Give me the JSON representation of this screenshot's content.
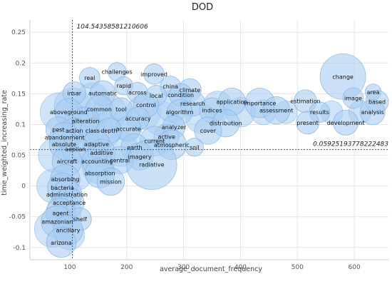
{
  "chart_data": {
    "type": "scatter",
    "title": "DOD",
    "xlabel": "average_document_frequency",
    "ylabel": "time_weighted_increasing_rate",
    "xlim": [
      30,
      660
    ],
    "ylim": [
      -0.12,
      0.27
    ],
    "xticks": [
      100,
      200,
      300,
      400,
      500,
      600
    ],
    "yticks": [
      -0.1,
      -0.05,
      0,
      0.05,
      0.1,
      0.15,
      0.2,
      0.25
    ],
    "grid": true,
    "bubble_color": "#a9cdf2",
    "bubble_stroke": "#7fb0e3",
    "reference_lines": {
      "vertical": {
        "value": 104.54358581210606,
        "label": "104.54358581210606"
      },
      "horizontal": {
        "value": 0.05925193778222483,
        "label": "0.05925193778222483"
      }
    },
    "points": [
      {
        "label": "challenges",
        "x": 183,
        "y": 0.186,
        "size": 0.8
      },
      {
        "label": "real",
        "x": 135,
        "y": 0.176,
        "size": 0.9
      },
      {
        "label": "improved",
        "x": 248,
        "y": 0.182,
        "size": 0.9
      },
      {
        "label": "rapid",
        "x": 195,
        "y": 0.163,
        "size": 0.8
      },
      {
        "label": "china",
        "x": 277,
        "y": 0.162,
        "size": 0.9
      },
      {
        "label": "climate",
        "x": 311,
        "y": 0.156,
        "size": 1.0
      },
      {
        "label": "change",
        "x": 580,
        "y": 0.178,
        "size": 2.0
      },
      {
        "label": "area",
        "x": 633,
        "y": 0.153,
        "size": 0.7
      },
      {
        "label": "insar",
        "x": 108,
        "y": 0.151,
        "size": 1.0
      },
      {
        "label": "automatic",
        "x": 158,
        "y": 0.151,
        "size": 1.1
      },
      {
        "label": "across",
        "x": 219,
        "y": 0.152,
        "size": 0.9
      },
      {
        "label": "local",
        "x": 252,
        "y": 0.147,
        "size": 0.9
      },
      {
        "label": "condition",
        "x": 295,
        "y": 0.148,
        "size": 1.0
      },
      {
        "label": "image",
        "x": 598,
        "y": 0.143,
        "size": 0.9
      },
      {
        "label": "based",
        "x": 640,
        "y": 0.137,
        "size": 1.0
      },
      {
        "label": "research",
        "x": 316,
        "y": 0.134,
        "size": 1.1
      },
      {
        "label": "application",
        "x": 385,
        "y": 0.137,
        "size": 1.2
      },
      {
        "label": "importance",
        "x": 434,
        "y": 0.135,
        "size": 1.3
      },
      {
        "label": "estimation",
        "x": 514,
        "y": 0.138,
        "size": 1.0
      },
      {
        "label": "control",
        "x": 234,
        "y": 0.132,
        "size": 1.1
      },
      {
        "label": "common",
        "x": 152,
        "y": 0.125,
        "size": 1.2
      },
      {
        "label": "tool",
        "x": 190,
        "y": 0.125,
        "size": 1.0
      },
      {
        "label": "algorithm",
        "x": 293,
        "y": 0.12,
        "size": 1.1
      },
      {
        "label": "indices",
        "x": 350,
        "y": 0.123,
        "size": 1.1
      },
      {
        "label": "assessment",
        "x": 463,
        "y": 0.123,
        "size": 1.2
      },
      {
        "label": "results",
        "x": 539,
        "y": 0.12,
        "size": 0.9
      },
      {
        "label": "analysis",
        "x": 632,
        "y": 0.12,
        "size": 1.1
      },
      {
        "label": "aboveground",
        "x": 98,
        "y": 0.12,
        "size": 1.2
      },
      {
        "label": "accuracy",
        "x": 220,
        "y": 0.11,
        "size": 1.0
      },
      {
        "label": "alteration",
        "x": 128,
        "y": 0.106,
        "size": 1.2
      },
      {
        "label": "distribution",
        "x": 374,
        "y": 0.102,
        "size": 1.2
      },
      {
        "label": "present",
        "x": 518,
        "y": 0.103,
        "size": 1.0
      },
      {
        "label": "development",
        "x": 585,
        "y": 0.103,
        "size": 1.1
      },
      {
        "label": "analyzer",
        "x": 283,
        "y": 0.096,
        "size": 1.0
      },
      {
        "label": "accurate",
        "x": 203,
        "y": 0.093,
        "size": 1.1
      },
      {
        "label": "pest",
        "x": 80,
        "y": 0.092,
        "size": 1.1
      },
      {
        "label": "action",
        "x": 108,
        "y": 0.09,
        "size": 1.1
      },
      {
        "label": "class",
        "x": 140,
        "y": 0.09,
        "size": 1.1
      },
      {
        "label": "depth",
        "x": 169,
        "y": 0.09,
        "size": 1.1
      },
      {
        "label": "cover",
        "x": 343,
        "y": 0.09,
        "size": 1.2
      },
      {
        "label": "abandonment",
        "x": 91,
        "y": 0.079,
        "size": 1.3
      },
      {
        "label": "active",
        "x": 270,
        "y": 0.08,
        "size": 1.1
      },
      {
        "label": "current",
        "x": 249,
        "y": 0.073,
        "size": 1.3
      },
      {
        "label": "absolute",
        "x": 90,
        "y": 0.068,
        "size": 1.3
      },
      {
        "label": "adaptive",
        "x": 147,
        "y": 0.068,
        "size": 1.2
      },
      {
        "label": "atmospheric",
        "x": 279,
        "y": 0.067,
        "size": 1.3
      },
      {
        "label": "earth",
        "x": 214,
        "y": 0.063,
        "size": 1.2
      },
      {
        "label": "soil",
        "x": 319,
        "y": 0.063,
        "size": 0.8
      },
      {
        "label": "aeolian",
        "x": 110,
        "y": 0.06,
        "size": 1.2
      },
      {
        "label": "additive",
        "x": 156,
        "y": 0.054,
        "size": 1.2
      },
      {
        "label": "imagery",
        "x": 223,
        "y": 0.048,
        "size": 1.2
      },
      {
        "label": "aircraft",
        "x": 95,
        "y": 0.04,
        "size": 1.3
      },
      {
        "label": "accounting",
        "x": 148,
        "y": 0.04,
        "size": 1.3
      },
      {
        "label": "central",
        "x": 188,
        "y": 0.042,
        "size": 1.2
      },
      {
        "label": "radiative",
        "x": 244,
        "y": 0.035,
        "size": 2.2
      },
      {
        "label": "absorption",
        "x": 153,
        "y": 0.021,
        "size": 1.3
      },
      {
        "label": "absorbing",
        "x": 92,
        "y": 0.011,
        "size": 1.3
      },
      {
        "label": "mission",
        "x": 172,
        "y": 0.007,
        "size": 1.2
      },
      {
        "label": "bacteria",
        "x": 87,
        "y": -0.003,
        "size": 1.3
      },
      {
        "label": "administration",
        "x": 95,
        "y": -0.014,
        "size": 1.3
      },
      {
        "label": "acceptance",
        "x": 99,
        "y": -0.027,
        "size": 1.3
      },
      {
        "label": "agent",
        "x": 84,
        "y": -0.044,
        "size": 1.3
      },
      {
        "label": "shelf",
        "x": 118,
        "y": -0.054,
        "size": 1.0
      },
      {
        "label": "amazonian",
        "x": 78,
        "y": -0.058,
        "size": 1.4
      },
      {
        "label": "ancillary",
        "x": 97,
        "y": -0.072,
        "size": 1.3
      },
      {
        "label": "arizona",
        "x": 85,
        "y": -0.092,
        "size": 1.3
      }
    ],
    "background_bubbles": [
      {
        "x": 70,
        "y": -0.07,
        "size": 1.6
      },
      {
        "x": 72,
        "y": 0.0,
        "size": 1.5
      },
      {
        "x": 75,
        "y": 0.05,
        "size": 1.5
      },
      {
        "x": 82,
        "y": 0.12,
        "size": 1.7
      },
      {
        "x": 105,
        "y": 0.13,
        "size": 1.6
      },
      {
        "x": 120,
        "y": 0.1,
        "size": 1.6
      },
      {
        "x": 110,
        "y": 0.02,
        "size": 1.5
      },
      {
        "x": 130,
        "y": 0.06,
        "size": 1.4
      },
      {
        "x": 90,
        "y": -0.04,
        "size": 1.5
      },
      {
        "x": 170,
        "y": 0.12,
        "size": 1.5
      },
      {
        "x": 200,
        "y": 0.1,
        "size": 1.4
      },
      {
        "x": 190,
        "y": 0.06,
        "size": 1.5
      },
      {
        "x": 230,
        "y": 0.12,
        "size": 1.5
      },
      {
        "x": 260,
        "y": 0.11,
        "size": 1.5
      },
      {
        "x": 280,
        "y": 0.13,
        "size": 1.4
      },
      {
        "x": 330,
        "y": 0.11,
        "size": 1.3
      },
      {
        "x": 360,
        "y": 0.13,
        "size": 1.3
      },
      {
        "x": 400,
        "y": 0.12,
        "size": 1.3
      },
      {
        "x": 440,
        "y": 0.12,
        "size": 1.1
      },
      {
        "x": 480,
        "y": 0.12,
        "size": 1.0
      },
      {
        "x": 560,
        "y": 0.12,
        "size": 1.0
      },
      {
        "x": 610,
        "y": 0.12,
        "size": 1.0
      },
      {
        "x": 140,
        "y": 0.14,
        "size": 1.5
      },
      {
        "x": 160,
        "y": 0.09,
        "size": 1.5
      },
      {
        "x": 100,
        "y": -0.08,
        "size": 1.3
      },
      {
        "x": 150,
        "y": 0.03,
        "size": 1.4
      }
    ]
  }
}
